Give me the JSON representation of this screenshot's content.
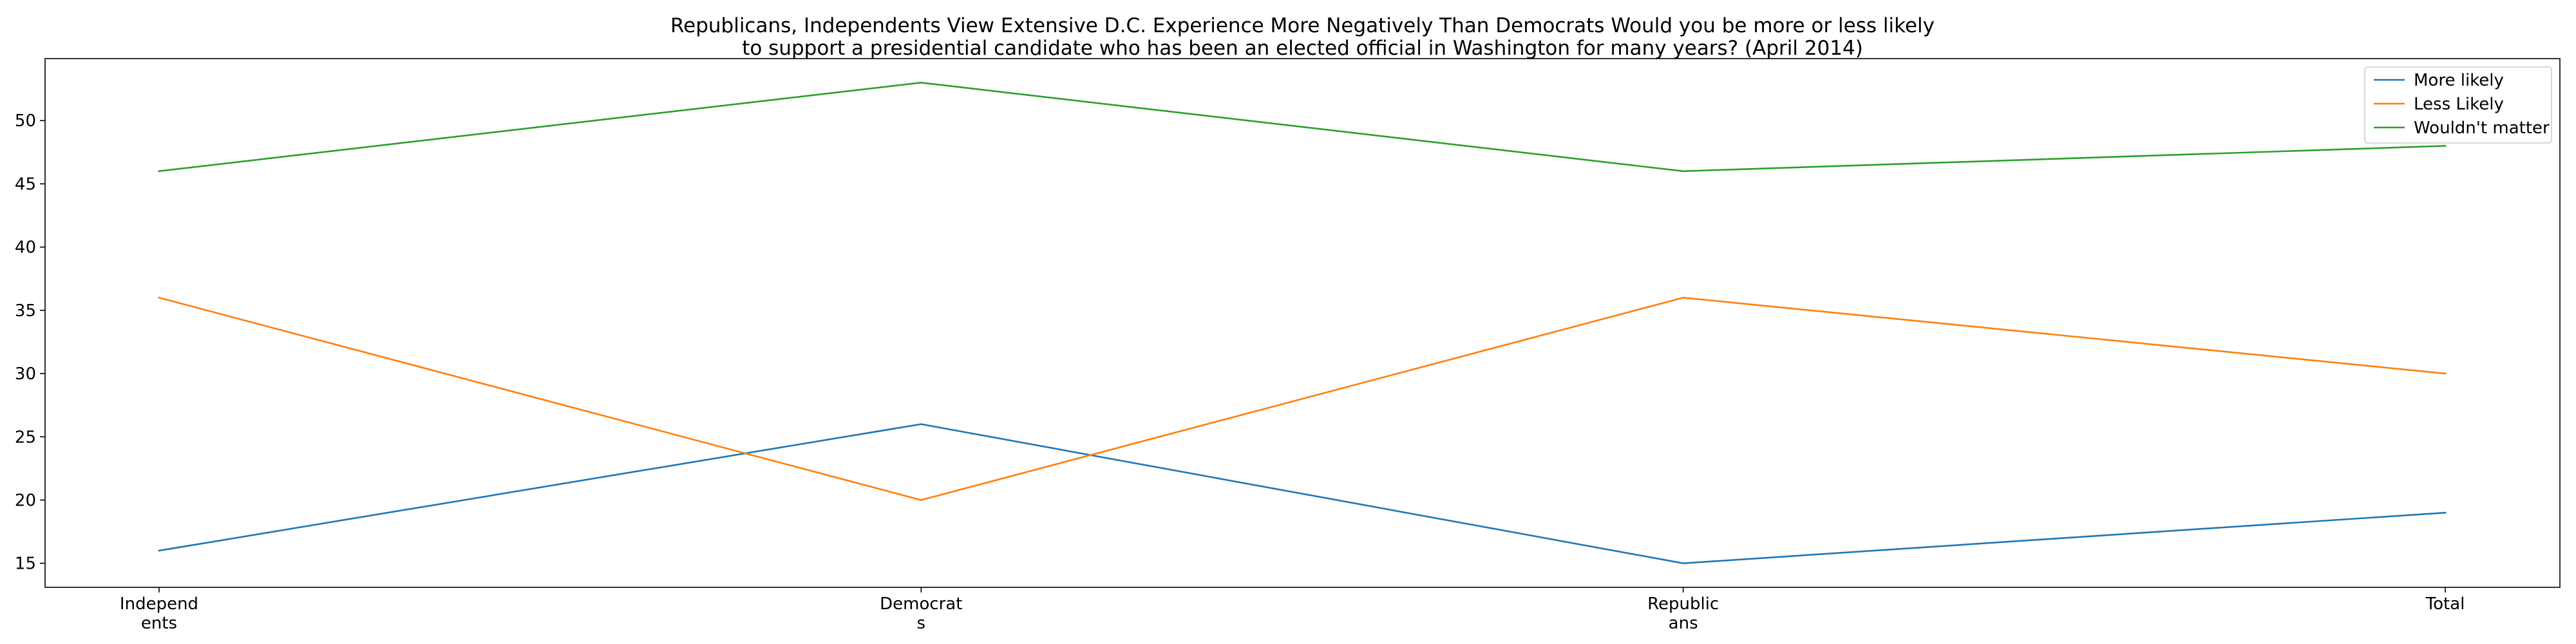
{
  "chart_data": {
    "type": "line",
    "title": [
      "Republicans, Independents View Extensive D.C. Experience More Negatively Than Democrats Would you be more or less likely",
      "to support a presidential candidate who has been an elected official in Washington for many years? (April 2014)"
    ],
    "categories": [
      [
        "Independ",
        "ents"
      ],
      [
        "Democrat",
        "s"
      ],
      [
        "Republic",
        "ans"
      ],
      [
        "Total"
      ]
    ],
    "series": [
      {
        "name": "More likely",
        "color": "#1f77b4",
        "values": [
          16,
          26,
          15,
          19
        ]
      },
      {
        "name": "Less Likely",
        "color": "#ff7f0e",
        "values": [
          36,
          20,
          36,
          30
        ]
      },
      {
        "name": "Wouldn't matter",
        "color": "#2ca02c",
        "values": [
          46,
          53,
          46,
          48
        ]
      }
    ],
    "yticks": [
      15,
      20,
      25,
      30,
      35,
      40,
      45,
      50
    ],
    "ylim": [
      13.1,
      54.9
    ],
    "xlabel": "",
    "ylabel": "",
    "grid": false,
    "legend_position": "top-right"
  }
}
